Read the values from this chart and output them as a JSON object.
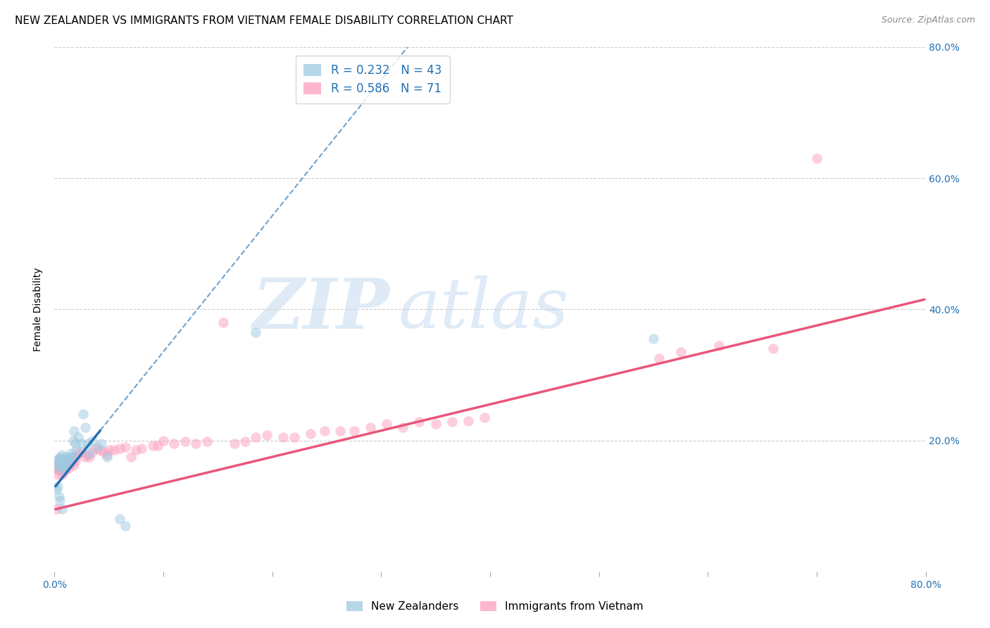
{
  "title": "NEW ZEALANDER VS IMMIGRANTS FROM VIETNAM FEMALE DISABILITY CORRELATION CHART",
  "source": "Source: ZipAtlas.com",
  "ylabel": "Female Disability",
  "xlim": [
    0.0,
    0.8
  ],
  "ylim": [
    0.0,
    0.8
  ],
  "color_nz": "#9ecae1",
  "color_viet": "#fc9fbf",
  "line_color_nz": "#2171b5",
  "line_color_viet": "#e8567a",
  "R_nz": 0.232,
  "N_nz": 43,
  "R_viet": 0.586,
  "N_viet": 71,
  "background_color": "#ffffff",
  "watermark_text": "ZIP",
  "watermark_text2": "atlas",
  "title_fontsize": 11,
  "axis_label_fontsize": 10,
  "tick_fontsize": 10,
  "legend_fontsize": 12,
  "grid_color": "#cccccc",
  "nz_line_x0": 0.001,
  "nz_line_x1": 0.042,
  "nz_line_y0": 0.13,
  "nz_line_y1": 0.215,
  "viet_line_x0": 0.001,
  "viet_line_x1": 0.799,
  "viet_line_y0": 0.095,
  "viet_line_y1": 0.415,
  "nz_x": [
    0.002,
    0.003,
    0.004,
    0.004,
    0.005,
    0.005,
    0.006,
    0.007,
    0.007,
    0.008,
    0.008,
    0.009,
    0.01,
    0.01,
    0.011,
    0.012,
    0.013,
    0.014,
    0.015,
    0.016,
    0.017,
    0.018,
    0.019,
    0.02,
    0.022,
    0.025,
    0.026,
    0.028,
    0.03,
    0.032,
    0.035,
    0.04,
    0.043,
    0.048,
    0.06,
    0.065,
    0.002,
    0.003,
    0.004,
    0.005,
    0.007,
    0.55,
    0.185
  ],
  "nz_y": [
    0.165,
    0.17,
    0.172,
    0.158,
    0.163,
    0.175,
    0.168,
    0.162,
    0.178,
    0.155,
    0.172,
    0.165,
    0.17,
    0.16,
    0.175,
    0.172,
    0.165,
    0.175,
    0.18,
    0.175,
    0.2,
    0.215,
    0.195,
    0.185,
    0.205,
    0.195,
    0.24,
    0.22,
    0.195,
    0.18,
    0.2,
    0.19,
    0.195,
    0.175,
    0.08,
    0.07,
    0.125,
    0.13,
    0.115,
    0.108,
    0.095,
    0.355,
    0.365
  ],
  "viet_x": [
    0.001,
    0.002,
    0.003,
    0.004,
    0.005,
    0.005,
    0.006,
    0.007,
    0.008,
    0.009,
    0.01,
    0.01,
    0.011,
    0.012,
    0.013,
    0.014,
    0.015,
    0.016,
    0.017,
    0.018,
    0.019,
    0.02,
    0.022,
    0.025,
    0.028,
    0.03,
    0.032,
    0.035,
    0.038,
    0.042,
    0.045,
    0.048,
    0.05,
    0.055,
    0.06,
    0.065,
    0.07,
    0.075,
    0.08,
    0.09,
    0.095,
    0.1,
    0.11,
    0.12,
    0.13,
    0.14,
    0.155,
    0.165,
    0.175,
    0.185,
    0.195,
    0.21,
    0.22,
    0.235,
    0.248,
    0.262,
    0.275,
    0.29,
    0.305,
    0.32,
    0.335,
    0.35,
    0.365,
    0.38,
    0.395,
    0.555,
    0.575,
    0.61,
    0.66,
    0.7,
    0.002
  ],
  "viet_y": [
    0.16,
    0.155,
    0.148,
    0.162,
    0.165,
    0.155,
    0.172,
    0.148,
    0.152,
    0.158,
    0.165,
    0.155,
    0.162,
    0.17,
    0.158,
    0.168,
    0.165,
    0.17,
    0.162,
    0.175,
    0.168,
    0.175,
    0.18,
    0.182,
    0.175,
    0.178,
    0.175,
    0.182,
    0.188,
    0.185,
    0.182,
    0.178,
    0.185,
    0.185,
    0.188,
    0.19,
    0.175,
    0.185,
    0.188,
    0.192,
    0.192,
    0.2,
    0.195,
    0.198,
    0.195,
    0.198,
    0.38,
    0.195,
    0.198,
    0.205,
    0.208,
    0.205,
    0.205,
    0.21,
    0.215,
    0.215,
    0.215,
    0.22,
    0.225,
    0.22,
    0.228,
    0.225,
    0.228,
    0.23,
    0.235,
    0.325,
    0.335,
    0.345,
    0.34,
    0.63,
    0.095
  ]
}
